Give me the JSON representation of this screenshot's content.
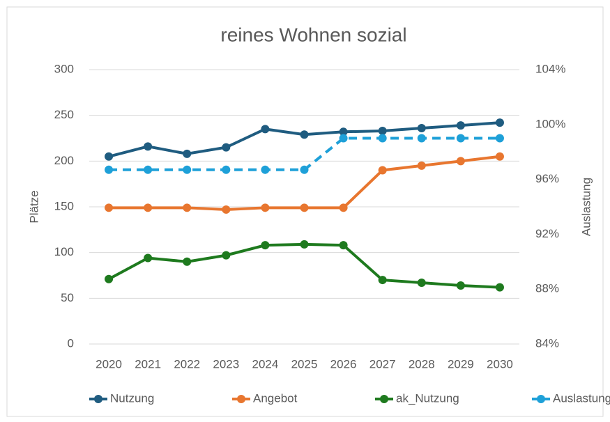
{
  "chart_data": {
    "type": "line",
    "title": "reines Wohnen sozial",
    "y_label": "Plätze",
    "y2_label": "Auslastung",
    "categories": [
      "2020",
      "2021",
      "2022",
      "2023",
      "2024",
      "2025",
      "2026",
      "2027",
      "2028",
      "2029",
      "2030"
    ],
    "series": [
      {
        "name": "Nutzung",
        "color": "#1f5c80",
        "values": [
          205,
          216,
          208,
          215,
          235,
          229,
          232,
          233,
          236,
          239,
          242
        ]
      },
      {
        "name": "Angebot",
        "color": "#e8762f",
        "values": [
          149,
          149,
          149,
          147,
          149,
          149,
          149,
          190,
          195,
          200,
          205
        ]
      },
      {
        "name": "ak_Nutzung",
        "color": "#1e7a1e",
        "values": [
          71,
          94,
          90,
          97,
          108,
          109,
          108,
          70,
          67,
          64,
          62
        ]
      },
      {
        "name": "Auslastung",
        "color": "#1ea0d8",
        "dashed": true,
        "axis": "y2",
        "values": [
          96.7,
          96.7,
          96.7,
          96.7,
          96.7,
          96.7,
          99,
          99,
          99,
          99,
          99
        ]
      }
    ],
    "ylim": [
      0,
      300
    ],
    "yticks": [
      0,
      50,
      100,
      150,
      200,
      250,
      300
    ],
    "y2lim": [
      84,
      104
    ],
    "y2ticks": [
      {
        "value": 84,
        "label": "84%"
      },
      {
        "value": 88,
        "label": "88%"
      },
      {
        "value": 92,
        "label": "92%"
      },
      {
        "value": 96,
        "label": "96%"
      },
      {
        "value": 100,
        "label": "100%"
      },
      {
        "value": 104,
        "label": "104%"
      }
    ],
    "grid": true,
    "legend": "bottom"
  }
}
